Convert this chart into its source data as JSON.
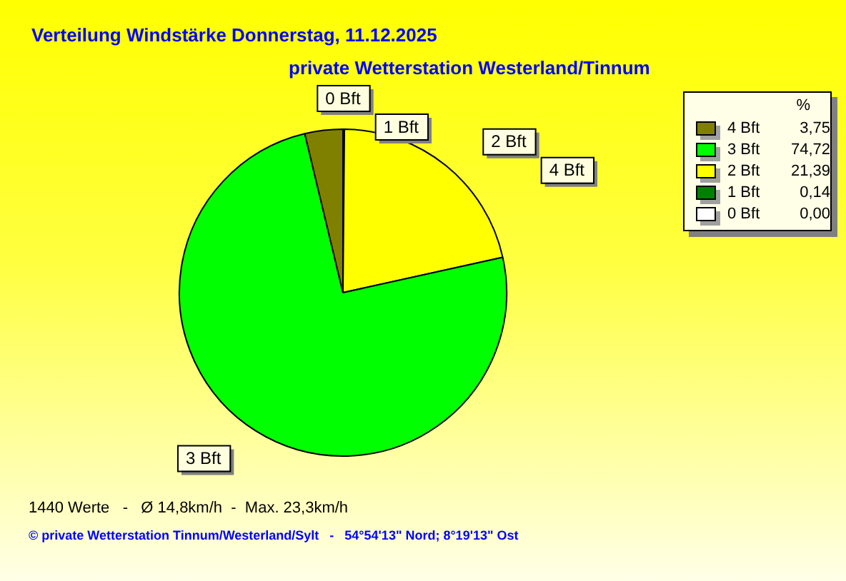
{
  "chart_data": {
    "type": "pie",
    "title": "Verteilung Windstärke  Donnerstag, 11.12.2025",
    "subtitle": "private Wetterstation Westerland/Tinnum",
    "categories": [
      "4 Bft",
      "3 Bft",
      "2 Bft",
      "1 Bft",
      "0 Bft"
    ],
    "values": [
      3.75,
      74.72,
      21.39,
      0.14,
      0
    ],
    "value_labels": [
      "3,75",
      "74,72",
      "21,39",
      "0,14",
      "0,00"
    ],
    "colors": [
      "#808000",
      "#00ff00",
      "#ffff00",
      "#008000",
      "#ffffff"
    ],
    "legend": "top right",
    "legend_title": "%",
    "annotations": [
      "1440 Werte   -   Ø 14,8km/h  -  Max. 23,3km/h",
      "© private Wetterstation Tinnum/Westerland/Sylt   -   54°54'13\" Nord; 8°19'13\" Ost"
    ]
  }
}
